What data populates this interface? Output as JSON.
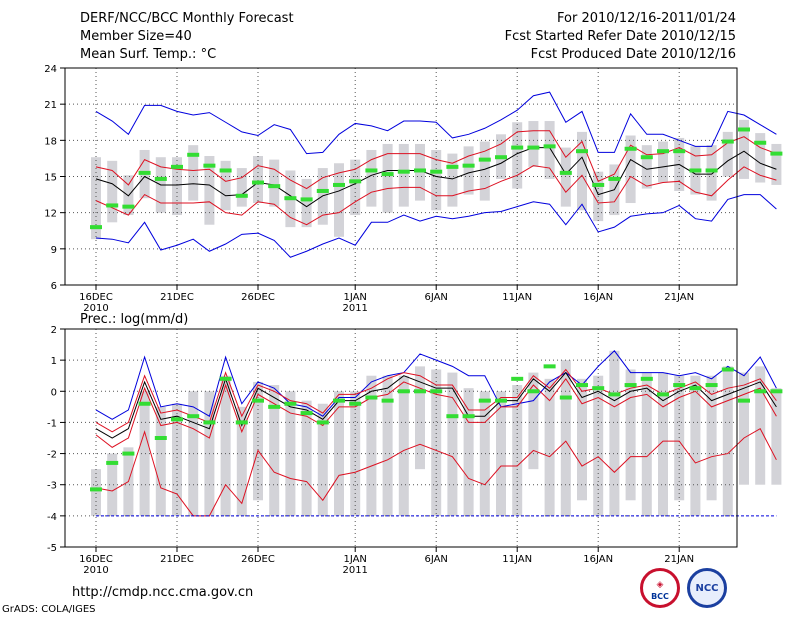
{
  "header": {
    "title": "DERF/NCC/BCC Monthly Forecast",
    "member_size": "Member Size=40",
    "variable": "Mean Surf. Temp.: °C",
    "for_range": "For 2010/12/16-2011/01/24",
    "fcst_started": "Fcst Started Refer Date 2010/12/15",
    "fcst_produced": "Fcst Produced Date 2010/12/16"
  },
  "footer": {
    "url": "http://cmdp.ncc.cma.gov.cn",
    "grads_credit": "GrADS: COLA/IGES",
    "logo_bcc": "BCC",
    "logo_ncc": "NCC"
  },
  "colors": {
    "bar": "#d3d3d8",
    "median": "#33dd33",
    "mean": "#000000",
    "std": "#dd1122",
    "envelope": "#0000dd",
    "grid": "#555555"
  },
  "chart_data": [
    {
      "type": "line",
      "title": "Mean Surf. Temp.: °C",
      "x_tick_labels": [
        "16DEC",
        "21DEC",
        "26DEC",
        "1JAN",
        "6JAN",
        "11JAN",
        "16JAN",
        "21JAN"
      ],
      "x_tick_days": [
        1,
        6,
        11,
        17,
        22,
        27,
        32,
        37
      ],
      "x_year_labels": [
        {
          "day": 1,
          "label": "2010"
        },
        {
          "day": 17,
          "label": "2011"
        }
      ],
      "ylim": [
        6,
        24
      ],
      "y_ticks": [
        6,
        9,
        12,
        15,
        18,
        21,
        24
      ],
      "series": [
        {
          "name": "max",
          "values": [
            20.4,
            19.6,
            18.5,
            20.9,
            20.9,
            20.4,
            20.1,
            20.3,
            19.5,
            18.7,
            18.4,
            19.3,
            18.9,
            16.9,
            17.0,
            18.5,
            19.4,
            19.2,
            18.8,
            19.6,
            19.6,
            19.5,
            18.2,
            18.5,
            19.0,
            19.7,
            20.5,
            21.7,
            22.0,
            19.5,
            20.4,
            17.0,
            17.0,
            20.2,
            18.5,
            18.5,
            18.0,
            17.5,
            17.5,
            20.4,
            20.1,
            19.3,
            18.5
          ]
        },
        {
          "name": "std_upper",
          "values": [
            15.8,
            15.5,
            14.3,
            16.4,
            15.8,
            15.6,
            15.5,
            15.6,
            14.6,
            14.9,
            15.9,
            15.6,
            14.7,
            14.0,
            14.9,
            15.3,
            15.6,
            16.4,
            16.9,
            16.9,
            16.9,
            16.4,
            16.1,
            16.7,
            17.1,
            17.7,
            18.7,
            18.8,
            18.8,
            16.6,
            17.9,
            14.6,
            15.2,
            17.6,
            16.8,
            16.9,
            17.4,
            16.7,
            16.8,
            17.8,
            18.3,
            17.4,
            16.9
          ]
        },
        {
          "name": "mean",
          "values": [
            14.8,
            14.4,
            13.4,
            15.0,
            14.3,
            14.3,
            14.4,
            14.3,
            13.4,
            13.5,
            14.5,
            14.3,
            13.4,
            12.5,
            13.4,
            13.8,
            14.4,
            15.1,
            15.5,
            15.5,
            15.5,
            15.0,
            14.8,
            15.3,
            15.6,
            16.1,
            16.9,
            17.4,
            17.4,
            15.2,
            16.6,
            13.5,
            13.9,
            16.4,
            15.6,
            15.8,
            16.0,
            15.2,
            15.2,
            16.3,
            17.1,
            16.1,
            15.6
          ]
        },
        {
          "name": "std_lower",
          "values": [
            13.0,
            12.4,
            11.8,
            13.5,
            12.8,
            12.8,
            12.8,
            12.9,
            12.0,
            11.8,
            12.9,
            12.7,
            11.6,
            11.0,
            11.8,
            12.0,
            12.9,
            13.7,
            14.0,
            14.1,
            14.1,
            13.4,
            13.4,
            13.8,
            14.0,
            14.6,
            15.1,
            15.9,
            15.7,
            13.7,
            15.1,
            12.8,
            12.9,
            15.0,
            14.2,
            14.5,
            14.6,
            13.7,
            13.4,
            14.7,
            15.8,
            15.1,
            14.7
          ]
        },
        {
          "name": "min",
          "values": [
            9.9,
            9.8,
            9.5,
            11.2,
            8.9,
            9.3,
            9.8,
            8.8,
            9.4,
            10.2,
            10.3,
            9.7,
            8.3,
            8.8,
            9.4,
            9.9,
            9.3,
            11.2,
            11.2,
            11.8,
            11.3,
            11.7,
            11.5,
            11.7,
            12.0,
            12.1,
            12.5,
            12.9,
            12.7,
            11.0,
            12.7,
            10.4,
            10.8,
            11.7,
            11.9,
            12.0,
            12.6,
            11.5,
            11.3,
            13.1,
            13.5,
            13.5,
            12.3
          ]
        },
        {
          "name": "median",
          "values": [
            10.8,
            12.6,
            12.5,
            15.3,
            14.8,
            15.8,
            16.8,
            15.9,
            15.5,
            13.4,
            14.5,
            14.2,
            13.2,
            13.1,
            13.8,
            14.3,
            14.6,
            15.5,
            15.2,
            15.4,
            15.5,
            15.4,
            15.8,
            15.9,
            16.4,
            16.6,
            17.4,
            17.4,
            17.5,
            15.3,
            17.1,
            14.3,
            14.8,
            17.3,
            16.6,
            17.1,
            17.1,
            15.5,
            15.5,
            17.9,
            18.9,
            17.8,
            16.9
          ]
        }
      ],
      "bar_low": [
        9.8,
        11.2,
        11.8,
        13.2,
        12.0,
        11.8,
        13.0,
        11.0,
        12.2,
        12.5,
        12.8,
        12.5,
        10.8,
        10.8,
        11.0,
        10.0,
        11.8,
        12.5,
        12.0,
        12.5,
        13.0,
        12.2,
        12.5,
        13.5,
        13.0,
        14.8,
        14.0,
        15.8,
        14.8,
        12.5,
        12.2,
        11.3,
        11.8,
        12.8,
        14.0,
        14.5,
        13.8,
        13.5,
        13.0,
        15.0,
        14.8,
        14.5,
        14.3
      ]
    },
    {
      "type": "line",
      "title": "Prec.: log(mm/d)",
      "x_tick_labels": [
        "16DEC",
        "21DEC",
        "26DEC",
        "1JAN",
        "6JAN",
        "11JAN",
        "16JAN",
        "21JAN"
      ],
      "x_tick_days": [
        1,
        6,
        11,
        17,
        22,
        27,
        32,
        37
      ],
      "x_year_labels": [
        {
          "day": 1,
          "label": "2010"
        },
        {
          "day": 17,
          "label": "2011"
        }
      ],
      "ylim": [
        -5,
        2
      ],
      "y_ticks": [
        -5,
        -4,
        -3,
        -2,
        -1,
        0,
        1,
        2
      ],
      "series": [
        {
          "name": "max",
          "values": [
            -0.6,
            -0.9,
            -0.6,
            1.1,
            -0.5,
            -0.4,
            -0.5,
            -0.8,
            1.1,
            -0.4,
            0.3,
            0.1,
            -0.4,
            -0.5,
            -0.8,
            -0.2,
            -0.2,
            0.3,
            0.5,
            0.6,
            1.2,
            1.0,
            0.8,
            0.5,
            0.5,
            -0.5,
            -0.4,
            -0.3,
            0.3,
            0.6,
            0.2,
            0.8,
            1.3,
            0.6,
            0.6,
            0.6,
            0.5,
            0.6,
            0.4,
            0.8,
            0.5,
            1.1,
            0.1
          ]
        },
        {
          "name": "mean",
          "values": [
            -1.2,
            -1.5,
            -1.2,
            0.3,
            -0.9,
            -0.8,
            -1.0,
            -1.2,
            0.4,
            -1.1,
            0.1,
            -0.2,
            -0.5,
            -0.6,
            -0.9,
            -0.3,
            -0.3,
            0.0,
            0.1,
            0.5,
            0.3,
            0.1,
            0.1,
            -0.8,
            -0.8,
            -0.3,
            -0.3,
            0.4,
            0.0,
            0.6,
            -0.2,
            0.0,
            -0.3,
            0.0,
            0.1,
            -0.3,
            0.0,
            0.2,
            -0.3,
            -0.1,
            0.1,
            0.3,
            -0.5
          ]
        },
        {
          "name": "std_upper",
          "values": [
            -1.0,
            -1.3,
            -1.0,
            0.5,
            -0.7,
            -0.6,
            -0.8,
            -1.0,
            0.6,
            -0.8,
            0.2,
            0.0,
            -0.3,
            -0.4,
            -0.7,
            -0.1,
            -0.1,
            0.1,
            0.4,
            0.6,
            0.5,
            0.2,
            0.2,
            -0.6,
            -0.6,
            -0.2,
            -0.2,
            0.5,
            0.1,
            0.7,
            0.0,
            0.1,
            -0.1,
            0.1,
            0.2,
            -0.1,
            0.1,
            0.3,
            -0.1,
            0.1,
            0.2,
            0.4,
            -0.3
          ]
        },
        {
          "name": "std_lower",
          "values": [
            -1.4,
            -1.8,
            -1.5,
            0.1,
            -1.1,
            -1.0,
            -1.2,
            -1.5,
            0.2,
            -1.3,
            -0.1,
            -0.4,
            -0.7,
            -0.8,
            -1.1,
            -0.5,
            -0.5,
            -0.2,
            -0.1,
            0.3,
            0.1,
            -0.1,
            -0.2,
            -1.0,
            -1.0,
            -0.5,
            -0.5,
            0.2,
            -0.3,
            0.4,
            -0.4,
            -0.2,
            -0.5,
            -0.2,
            -0.1,
            -0.5,
            -0.2,
            0.0,
            -0.5,
            -0.3,
            -0.1,
            0.1,
            -0.8
          ]
        },
        {
          "name": "std_low_band",
          "values": [
            -3.1,
            -3.2,
            -2.9,
            -1.3,
            -3.1,
            -3.3,
            -4.0,
            -4.0,
            -3.0,
            -3.6,
            -1.9,
            -2.6,
            -2.8,
            -2.9,
            -3.5,
            -2.7,
            -2.6,
            -2.4,
            -2.2,
            -1.9,
            -1.7,
            -1.9,
            -2.1,
            -2.8,
            -3.0,
            -2.4,
            -2.4,
            -1.9,
            -2.1,
            -1.6,
            -2.4,
            -2.1,
            -2.6,
            -2.1,
            -2.1,
            -1.6,
            -1.6,
            -2.3,
            -2.1,
            -2.0,
            -1.5,
            -1.2,
            -2.2
          ]
        },
        {
          "name": "median",
          "values": [
            -3.15,
            -2.3,
            -2.0,
            -0.4,
            -1.5,
            -0.9,
            -0.8,
            -1.0,
            0.4,
            -1.0,
            -0.3,
            -0.5,
            -0.4,
            -0.7,
            -1.0,
            -0.3,
            -0.4,
            -0.2,
            -0.3,
            0.0,
            0.0,
            0.0,
            -0.8,
            -0.8,
            -0.3,
            -0.3,
            0.4,
            0.0,
            0.8,
            -0.2,
            0.2,
            0.1,
            -0.1,
            0.2,
            0.4,
            -0.1,
            0.2,
            0.1,
            0.2,
            0.7,
            -0.3,
            0.0,
            0.0
          ]
        },
        {
          "name": "floor",
          "values": [
            -4,
            -4,
            -4,
            -4,
            -4,
            -4,
            -4,
            -4,
            -4,
            -4,
            -4,
            -4,
            -4,
            -4,
            -4,
            -4,
            -4,
            -4,
            -4,
            -4,
            -4,
            -4,
            -4,
            -4,
            -4,
            -4,
            -4,
            -4,
            -4,
            -4,
            -4,
            -4,
            -4,
            -4,
            -4,
            -4,
            -4,
            -4,
            -4,
            -4,
            -4,
            -4,
            -4
          ]
        }
      ],
      "bar_low": [
        -4.0,
        -4.0,
        -4.0,
        -4.0,
        -4.0,
        -4.0,
        -4.0,
        -4.0,
        -4.0,
        -4.0,
        -3.5,
        -4.0,
        -4.0,
        -4.0,
        -4.0,
        -4.0,
        -4.0,
        -4.0,
        -4.0,
        -4.0,
        -2.5,
        -4.0,
        -4.0,
        -4.0,
        -4.0,
        -4.0,
        -4.0,
        -2.5,
        -4.0,
        -4.0,
        -3.5,
        -4.0,
        -4.0,
        -3.5,
        -4.0,
        -4.0,
        -3.5,
        -4.0,
        -3.5,
        -4.0,
        -3.0,
        -3.0,
        -3.0
      ],
      "bar_high": [
        -2.5,
        -2.0,
        -1.8,
        0.0,
        -0.5,
        -0.4,
        0.0,
        0.0,
        0.5,
        -0.5,
        0.3,
        0.2,
        0.0,
        -0.3,
        -0.4,
        0.0,
        0.0,
        0.5,
        0.5,
        0.5,
        0.8,
        0.7,
        0.6,
        0.1,
        0.0,
        0.0,
        0.2,
        0.6,
        0.4,
        1.0,
        0.4,
        0.5,
        1.3,
        0.7,
        0.6,
        0.6,
        0.5,
        0.5,
        0.5,
        0.8,
        0.6,
        0.8,
        0.1
      ]
    }
  ]
}
